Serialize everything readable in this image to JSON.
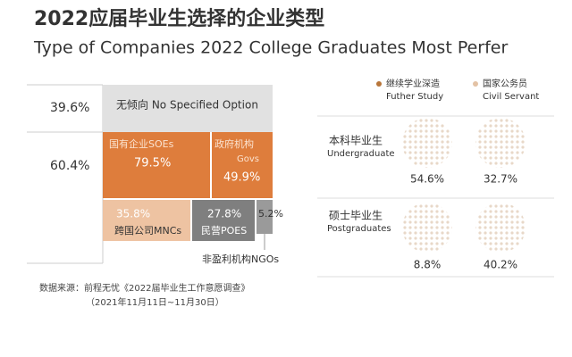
{
  "header": {
    "title": "2022应届毕业生选择的企业类型",
    "subtitle": "Type of Companies 2022 College Graduates Most Perfer"
  },
  "left": {
    "shares": [
      "39.6%",
      "60.4%"
    ],
    "none": "无倾向 No Specified Option",
    "soe": {
      "label": "国有企业SOEs",
      "value": "79.5%"
    },
    "gov": {
      "label": "政府机构",
      "label_en": "Govs",
      "value": "49.9%"
    },
    "mnc": {
      "label": "跨国公司MNCs",
      "value": "35.8%"
    },
    "poe": {
      "label": "民营POES",
      "value": "27.8%"
    },
    "ngo": {
      "label": "非盈利机构NGOs",
      "value": "5.2%"
    }
  },
  "source": [
    "数据来源：前程无忧《2022届毕业生工作意愿调查》",
    "（2021年11月11日~11月30日）"
  ],
  "right": {
    "legend": [
      {
        "label": "继续学业深造",
        "label_en": "Futher Study"
      },
      {
        "label": "国家公务员",
        "label_en": "Civil Servant"
      }
    ],
    "rows": [
      {
        "label": "本科毕业生",
        "label_en": "Undergraduate",
        "values": [
          "54.6%",
          "32.7%"
        ]
      },
      {
        "label": "硕士毕业生",
        "label_en": "Postgraduates",
        "values": [
          "8.8%",
          "40.2%"
        ]
      }
    ]
  }
}
